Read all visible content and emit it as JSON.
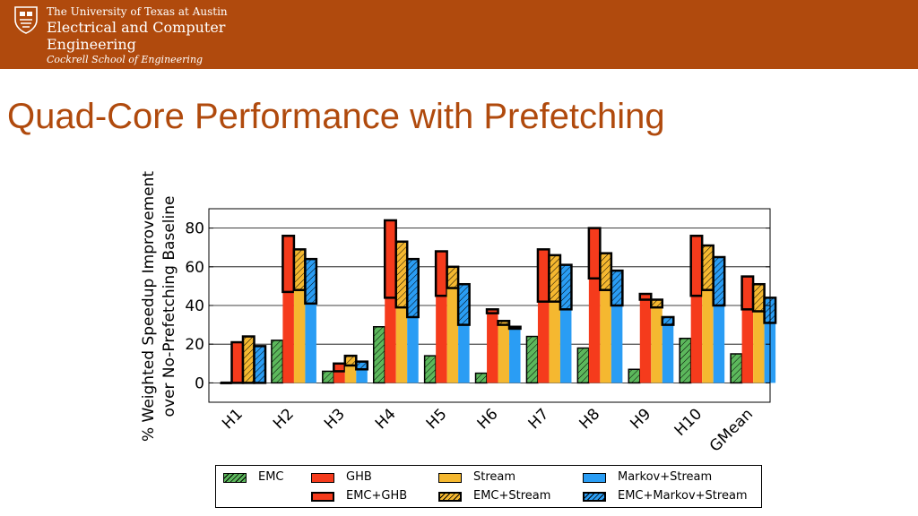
{
  "header": {
    "university": "The University of Texas at Austin",
    "department_line1": "Electrical and Computer",
    "department_line2": "Engineering",
    "school": "Cockrell School of Engineering",
    "icon": "shield-seal-icon",
    "bar_color": "#b04a0d"
  },
  "slide": {
    "title": "Quad-Core Performance with Prefetching",
    "title_color": "#b04a0d"
  },
  "chart_data": {
    "type": "bar",
    "title": "",
    "ylabel_line1": "% Weighted Speedup Improvement",
    "ylabel_line2": "over No-Prefetching Baseline",
    "xlabel": "",
    "ylim": [
      -10,
      90
    ],
    "yticks": [
      0,
      20,
      40,
      60,
      80
    ],
    "grid": true,
    "legend_position": "bottom",
    "categories": [
      "H1",
      "H2",
      "H3",
      "H4",
      "H5",
      "H6",
      "H7",
      "H8",
      "H9",
      "H10",
      "GMean"
    ],
    "series": [
      {
        "name": "EMC",
        "color": "#5cb85c",
        "hatched": true,
        "values": [
          0,
          22,
          6,
          29,
          14,
          5,
          24,
          18,
          7,
          23,
          15
        ]
      },
      {
        "name": "GHB",
        "emc_name": "EMC+GHB",
        "color": "#f53b1c",
        "values": [
          0,
          47,
          6,
          44,
          45,
          36,
          42,
          54,
          43,
          45,
          38
        ],
        "emc_values": [
          21,
          76,
          10,
          84,
          68,
          38,
          69,
          80,
          46,
          76,
          55
        ]
      },
      {
        "name": "Stream",
        "emc_name": "EMC+Stream",
        "color": "#f5b830",
        "values": [
          0,
          48,
          9,
          39,
          49,
          30,
          42,
          48,
          39,
          48,
          37
        ],
        "emc_values": [
          24,
          69,
          14,
          73,
          60,
          32,
          66,
          67,
          43,
          71,
          51
        ]
      },
      {
        "name": "Markov+Stream",
        "emc_name": "EMC+Markov+Stream",
        "color": "#2a9df4",
        "values": [
          0,
          41,
          7,
          34,
          30,
          28,
          38,
          40,
          30,
          40,
          31
        ],
        "emc_values": [
          19,
          64,
          11,
          64,
          51,
          29,
          61,
          58,
          34,
          65,
          44
        ]
      }
    ],
    "legend": {
      "row1": [
        "EMC",
        "GHB",
        "Stream",
        "Markov+Stream"
      ],
      "row2": [
        "",
        "EMC+GHB",
        "EMC+Stream",
        "EMC+Markov+Stream"
      ]
    }
  }
}
